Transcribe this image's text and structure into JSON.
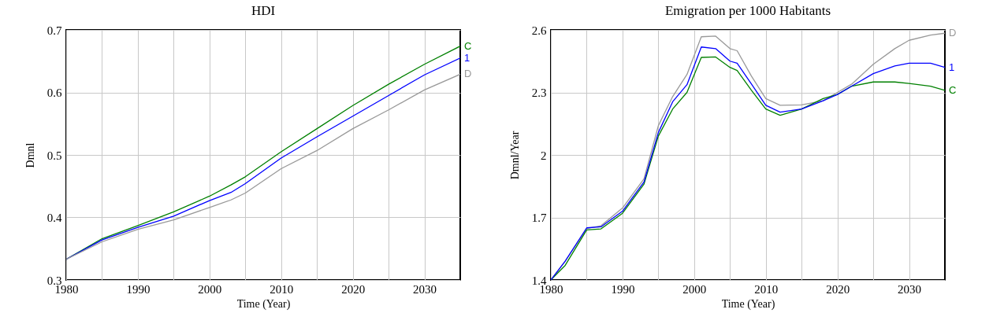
{
  "chart_data": [
    {
      "type": "line",
      "title": "HDI",
      "xlabel": "Time (Year)",
      "ylabel": "Dmnl",
      "x": [
        1980,
        1985,
        1990,
        1995,
        2000,
        2003,
        2005,
        2010,
        2015,
        2020,
        2025,
        2030,
        2035
      ],
      "xlim": [
        1980,
        2035
      ],
      "xticks": [
        1980,
        {
          "value": 1985,
          "label": null
        },
        1990,
        {
          "value": 1995,
          "label": null
        },
        2000,
        {
          "value": 2005,
          "label": null
        },
        2010,
        {
          "value": 2015,
          "label": null
        },
        2020,
        {
          "value": 2025,
          "label": null
        },
        2030
      ],
      "ylim": [
        0.3,
        0.7
      ],
      "yticks": [
        0.3,
        0.4,
        0.5,
        0.6,
        0.7
      ],
      "grid": true,
      "legend": false,
      "marker": "none",
      "line_style": "solid",
      "series": [
        {
          "name": "C",
          "color": "#008000",
          "values": [
            0.333,
            0.366,
            0.387,
            0.409,
            0.434,
            0.452,
            0.465,
            0.505,
            0.542,
            0.579,
            0.613,
            0.645,
            0.674
          ]
        },
        {
          "name": "1",
          "color": "#0000ff",
          "values": [
            0.333,
            0.364,
            0.384,
            0.402,
            0.427,
            0.44,
            0.454,
            0.495,
            0.529,
            0.562,
            0.595,
            0.628,
            0.655
          ]
        },
        {
          "name": "D",
          "color": "#999999",
          "values": [
            0.333,
            0.361,
            0.381,
            0.396,
            0.416,
            0.428,
            0.439,
            0.478,
            0.507,
            0.542,
            0.572,
            0.604,
            0.629
          ]
        }
      ]
    },
    {
      "type": "line",
      "title": "Emigration per 1000 Habitants",
      "xlabel": "Time (Year)",
      "ylabel": "Dmnl/Year",
      "x": [
        1980,
        1982,
        1985,
        1987,
        1990,
        1993,
        1995,
        1997,
        1999,
        2001,
        2003,
        2005,
        2006,
        2008,
        2010,
        2012,
        2015,
        2018,
        2020,
        2022,
        2025,
        2028,
        2030,
        2033,
        2035
      ],
      "xlim": [
        1980,
        2035
      ],
      "xticks": [
        1980,
        {
          "value": 1985,
          "label": null
        },
        1990,
        {
          "value": 1995,
          "label": null
        },
        2000,
        {
          "value": 2005,
          "label": null
        },
        2010,
        {
          "value": 2015,
          "label": null
        },
        2020,
        {
          "value": 2025,
          "label": null
        },
        2030
      ],
      "ylim": [
        1.4,
        2.6
      ],
      "yticks": [
        1.4,
        1.7,
        2,
        2.3,
        2.6
      ],
      "grid": true,
      "legend": false,
      "marker": "none",
      "line_style": "solid",
      "series": [
        {
          "name": "D",
          "color": "#999999",
          "values": [
            1.4,
            1.49,
            1.647,
            1.66,
            1.745,
            1.885,
            2.14,
            2.28,
            2.386,
            2.567,
            2.57,
            2.51,
            2.5,
            2.378,
            2.27,
            2.238,
            2.24,
            2.26,
            2.3,
            2.34,
            2.435,
            2.51,
            2.55,
            2.575,
            2.584
          ]
        },
        {
          "name": "C",
          "color": "#008000",
          "values": [
            1.4,
            1.47,
            1.64,
            1.645,
            1.72,
            1.86,
            2.09,
            2.22,
            2.3,
            2.468,
            2.47,
            2.42,
            2.405,
            2.31,
            2.22,
            2.19,
            2.22,
            2.27,
            2.29,
            2.33,
            2.35,
            2.35,
            2.343,
            2.33,
            2.31
          ]
        },
        {
          "name": "1",
          "color": "#0000ff",
          "values": [
            1.4,
            1.49,
            1.65,
            1.655,
            1.73,
            1.87,
            2.107,
            2.255,
            2.337,
            2.518,
            2.51,
            2.45,
            2.44,
            2.34,
            2.238,
            2.205,
            2.22,
            2.26,
            2.29,
            2.33,
            2.39,
            2.427,
            2.44,
            2.44,
            2.42
          ]
        }
      ]
    }
  ]
}
